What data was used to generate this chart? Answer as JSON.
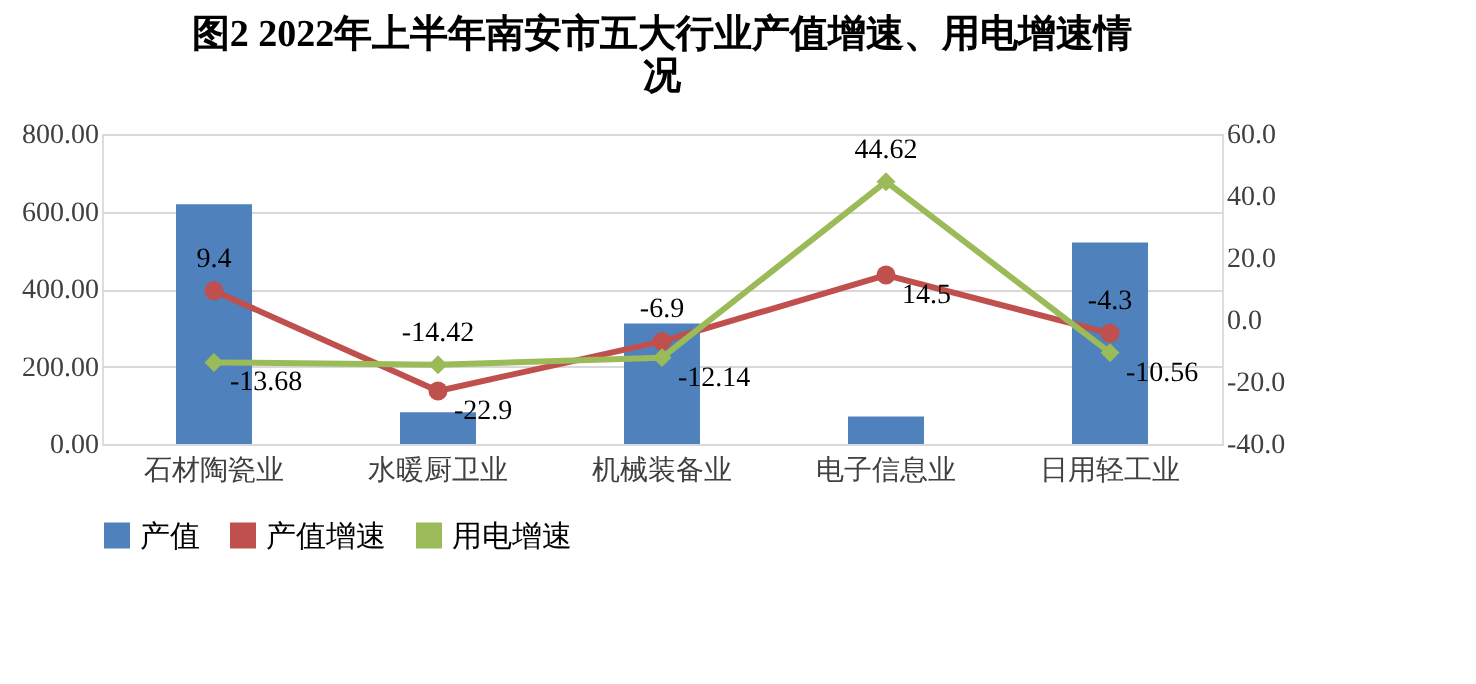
{
  "chart_data": {
    "type": "bar",
    "title": "图2 2022年上半年南安市五大行业产值增速、用电增速情况",
    "categories": [
      "石材陶瓷业",
      "水暖厨卫业",
      "机械装备业",
      "电子信息业",
      "日用轻工业"
    ],
    "series": [
      {
        "name": "产值",
        "color": "#4f81bd",
        "values": [
          619,
          82,
          311,
          71,
          520
        ]
      },
      {
        "name": "产值增速",
        "type": "line",
        "axis": "y2",
        "marker": "circle",
        "color": "#c0504d",
        "values": [
          9.4,
          -22.9,
          -6.9,
          14.5,
          -4.3
        ],
        "value_labels": [
          "9.4",
          "-22.9",
          "-6.9",
          "14.5",
          "-4.3"
        ]
      },
      {
        "name": "用电增速",
        "type": "line",
        "axis": "y2",
        "marker": "diamond",
        "color": "#9bbb59",
        "values": [
          -13.68,
          -14.42,
          -12.14,
          44.62,
          -10.56
        ],
        "value_labels": [
          "-13.68",
          "-14.42",
          "-12.14",
          "44.62",
          "-10.56"
        ]
      }
    ],
    "ylim": [
      0,
      800
    ],
    "yticks": [
      {
        "value": 0,
        "label": "0.00"
      },
      {
        "value": 200,
        "label": "200.00"
      },
      {
        "value": 400,
        "label": "400.00"
      },
      {
        "value": 600,
        "label": "600.00"
      },
      {
        "value": 800,
        "label": "800.00"
      }
    ],
    "y2lim": [
      -40,
      60
    ],
    "y2ticks": [
      {
        "value": -40,
        "label": "-40.0"
      },
      {
        "value": -20,
        "label": "-20.0"
      },
      {
        "value": 0,
        "label": "0.0"
      },
      {
        "value": 20,
        "label": "20.0"
      },
      {
        "value": 40,
        "label": "40.0"
      },
      {
        "value": 60,
        "label": "60.0"
      }
    ],
    "grid": "y",
    "legend": "bottom"
  }
}
